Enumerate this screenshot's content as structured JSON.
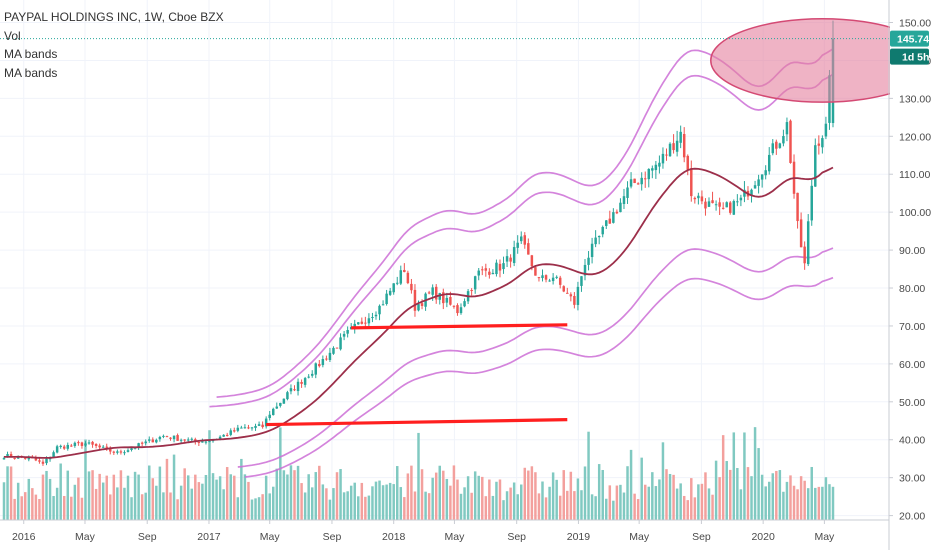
{
  "header": {
    "symbol_line": "PAYPAL HOLDINGS INC, 1W, Cboe BZX",
    "indicators": [
      "Vol",
      "MA bands",
      "MA bands"
    ]
  },
  "price_tag": {
    "value": "145.74",
    "countdown": "1d 5h"
  },
  "colors": {
    "up": "#26a69a",
    "down": "#ef5350",
    "vol_up": "#80c9c1",
    "vol_down": "#f3a09d",
    "ma": "#9c2f4a",
    "band": "#cc6ed6",
    "hline": "#ff1f1f",
    "circle_fill": "#e4809e",
    "circle_stroke": "#d44a74",
    "tag_bg": "#26a69a",
    "tag_bg2": "#0f7a6f"
  },
  "chart_data": {
    "type": "candlestick",
    "ylim": [
      18,
      155
    ],
    "y_ticks": [
      "20.00",
      "30.00",
      "40.00",
      "50.00",
      "60.00",
      "70.00",
      "80.00",
      "90.00",
      "100.00",
      "110.00",
      "120.00",
      "130.00",
      "140.00",
      "150.00"
    ],
    "x_ticks": [
      "2016",
      "May",
      "Sep",
      "2017",
      "May",
      "Sep",
      "2018",
      "May",
      "Sep",
      "2019",
      "May",
      "Sep",
      "2020",
      "May"
    ],
    "start": "2015-11-23",
    "end": "2020-05-18",
    "weeks": 235,
    "close_anchors": [
      [
        "2015-11-23",
        35.8
      ],
      [
        "2016-01-18",
        35.0
      ],
      [
        "2016-02-08",
        33.5
      ],
      [
        "2016-03-07",
        38.0
      ],
      [
        "2016-05-02",
        39.0
      ],
      [
        "2016-07-04",
        36.5
      ],
      [
        "2016-08-15",
        38.5
      ],
      [
        "2016-10-03",
        41.0
      ],
      [
        "2016-12-05",
        39.5
      ],
      [
        "2017-01-09",
        40.0
      ],
      [
        "2017-03-06",
        43.0
      ],
      [
        "2017-04-17",
        43.5
      ],
      [
        "2017-05-01",
        47.0
      ],
      [
        "2017-06-05",
        52.0
      ],
      [
        "2017-08-07",
        60.0
      ],
      [
        "2017-10-02",
        68.0
      ],
      [
        "2017-12-04",
        75.0
      ],
      [
        "2018-01-22",
        85.0
      ],
      [
        "2018-02-12",
        75.0
      ],
      [
        "2018-03-19",
        79.0
      ],
      [
        "2018-05-07",
        74.0
      ],
      [
        "2018-06-18",
        84.0
      ],
      [
        "2018-08-06",
        86.0
      ],
      [
        "2018-09-10",
        92.0
      ],
      [
        "2018-10-15",
        82.0
      ],
      [
        "2018-11-12",
        83.0
      ],
      [
        "2018-12-24",
        76.0
      ],
      [
        "2019-01-14",
        87.0
      ],
      [
        "2019-03-04",
        98.0
      ],
      [
        "2019-04-15",
        107.0
      ],
      [
        "2019-06-10",
        113.0
      ],
      [
        "2019-07-22",
        121.0
      ],
      [
        "2019-08-12",
        105.0
      ],
      [
        "2019-10-07",
        100.0
      ],
      [
        "2019-11-18",
        103.0
      ],
      [
        "2020-01-06",
        113.0
      ],
      [
        "2020-02-17",
        123.0
      ],
      [
        "2020-03-09",
        96.0
      ],
      [
        "2020-03-23",
        86.0
      ],
      [
        "2020-04-13",
        118.0
      ],
      [
        "2020-05-04",
        122.0
      ],
      [
        "2020-05-18",
        145.74
      ]
    ],
    "horizontal_lines": [
      {
        "x1": "2017-10-09",
        "x2": "2018-12-10",
        "y1": 69.5,
        "y2": 70.3
      },
      {
        "x1": "2017-04-24",
        "x2": "2018-12-10",
        "y1": 44.0,
        "y2": 45.3
      }
    ],
    "last_price": 145.74,
    "annotation": {
      "type": "ellipse",
      "x": "2020-04-27",
      "y": 140,
      "rx_weeks": 7.5,
      "ry_price": 11
    }
  }
}
